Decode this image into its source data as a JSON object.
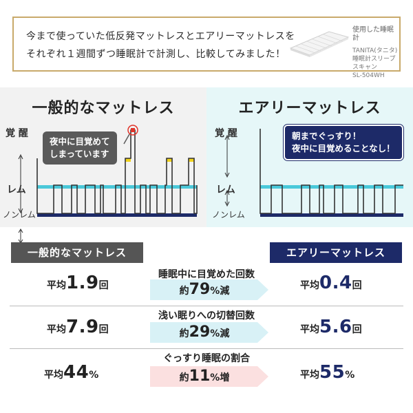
{
  "banner": {
    "line1": "今まで使っていた低反発マットレスとエアリーマットレスを",
    "line2": "それぞれ１週間ずつ睡眠計で計測し、比較してみました！",
    "device_caption": "使用した睡眠計",
    "device_name1": "TANITA(タニタ)",
    "device_name2": "睡眠計スリープスキャン",
    "device_model": "SL-504WH"
  },
  "left_panel": {
    "title": "一般的なマットレス",
    "awake": "覚 醒",
    "rem": "レム",
    "nonrem": "ノンレム",
    "bubble_line1": "夜中に目覚めて",
    "bubble_line2": "しまっています"
  },
  "right_panel": {
    "title": "エアリーマットレス",
    "awake": "覚 醒",
    "rem": "レム",
    "nonrem": "ノンレム",
    "bubble_line1": "朝までぐっすり！",
    "bubble_line2": "夜中に目覚めることなし！"
  },
  "table": {
    "left_header": "一般的なマットレス",
    "right_header": "エアリーマットレス",
    "rows": [
      {
        "title": "睡眠中に目覚めた回数",
        "left_prefix": "平均",
        "left_num": "1.9",
        "left_unit": "回",
        "diff_prefix": "約",
        "diff_num": "79",
        "diff_unit": "%減",
        "right_prefix": "平均",
        "right_num": "0.4",
        "right_unit": "回"
      },
      {
        "title": "浅い眠りへの切替回数",
        "left_prefix": "平均",
        "left_num": "7.9",
        "left_unit": "回",
        "diff_prefix": "約",
        "diff_num": "29",
        "diff_unit": "%減",
        "right_prefix": "平均",
        "right_num": "5.6",
        "right_unit": "回"
      },
      {
        "title": "ぐっすり睡眠の割合",
        "left_prefix": "平均",
        "left_num": "44",
        "left_unit": "%",
        "diff_prefix": "約",
        "diff_num": "11",
        "diff_unit": "%増",
        "right_prefix": "平均",
        "right_num": "55",
        "right_unit": "%"
      }
    ]
  },
  "colors": {
    "gold": "#c8a96a",
    "navy": "#1d2a68",
    "gray": "#555555",
    "cyan": "#39c3d6",
    "yellow": "#f1d31c",
    "red": "#e0342a",
    "arrow_blue": "#d8f1f6",
    "arrow_pink": "#fbe0e0"
  }
}
